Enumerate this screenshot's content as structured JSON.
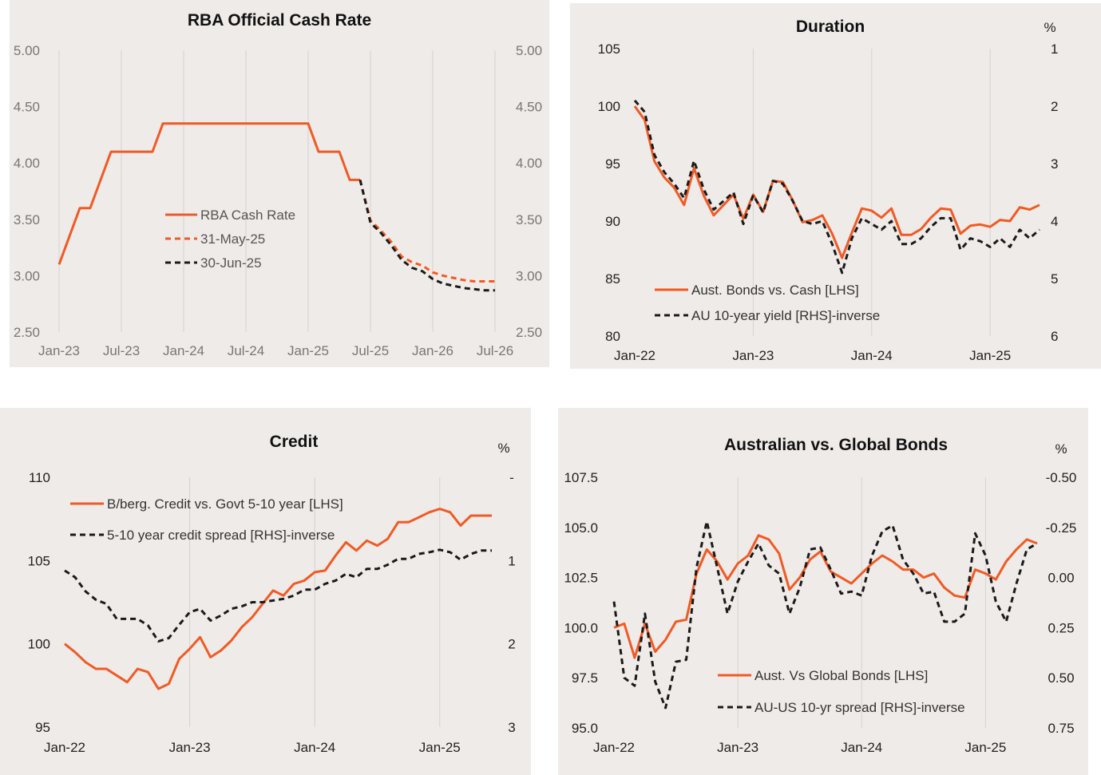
{
  "colors": {
    "orange": "#f15a24",
    "black": "#1a1a1a",
    "grid": "#d6d2ce",
    "panel_bg": "#efebe8"
  },
  "chart_data": [
    {
      "id": "cash",
      "type": "line",
      "title": "RBA Official Cash Rate",
      "y_unit": "",
      "x_domain": [
        "2023-01-01",
        "2026-07-01"
      ],
      "x_ticks": [
        "Jan-23",
        "Jul-23",
        "Jan-24",
        "Jul-24",
        "Jan-25",
        "Jul-25",
        "Jan-26",
        "Jul-26"
      ],
      "ylim": [
        2.5,
        5.0
      ],
      "y_ticks": [
        "5.00",
        "4.50",
        "4.00",
        "3.50",
        "3.00",
        "2.50"
      ],
      "y2_ticks": [
        "5.00",
        "4.50",
        "4.00",
        "3.50",
        "3.00",
        "2.50"
      ],
      "grid": "vertical",
      "legend_position": "center",
      "series": [
        {
          "name": "RBA Cash Rate",
          "color": "#f15a24",
          "dash": "solid",
          "axis": "left",
          "x": [
            "2023-01",
            "2023-03",
            "2023-04",
            "2023-06",
            "2023-07",
            "2023-08",
            "2023-09",
            "2023-10",
            "2023-11",
            "2023-12",
            "2024-01",
            "2024-06",
            "2024-12",
            "2025-01",
            "2025-02",
            "2025-03",
            "2025-04",
            "2025-05",
            "2025-06"
          ],
          "y": [
            3.1,
            3.6,
            3.6,
            4.1,
            4.1,
            4.1,
            4.1,
            4.1,
            4.35,
            4.35,
            4.35,
            4.35,
            4.35,
            4.35,
            4.1,
            4.1,
            4.1,
            3.85,
            3.85
          ]
        },
        {
          "name": "31-May-25",
          "color": "#f15a24",
          "dash": "dashed",
          "axis": "left",
          "x": [
            "2025-06",
            "2025-07",
            "2025-08",
            "2025-09",
            "2025-10",
            "2025-11",
            "2025-12",
            "2026-01",
            "2026-02",
            "2026-03",
            "2026-04",
            "2026-05",
            "2026-06",
            "2026-07"
          ],
          "y": [
            3.85,
            3.49,
            3.4,
            3.3,
            3.17,
            3.12,
            3.09,
            3.03,
            3.0,
            2.98,
            2.96,
            2.95,
            2.95,
            2.95
          ]
        },
        {
          "name": "30-Jun-25",
          "color": "#1a1a1a",
          "dash": "dashed",
          "axis": "left",
          "x": [
            "2025-06",
            "2025-07",
            "2025-08",
            "2025-09",
            "2025-10",
            "2025-11",
            "2025-12",
            "2026-01",
            "2026-02",
            "2026-03",
            "2026-04",
            "2026-05",
            "2026-06",
            "2026-07"
          ],
          "y": [
            3.85,
            3.47,
            3.38,
            3.27,
            3.14,
            3.07,
            3.04,
            2.97,
            2.93,
            2.91,
            2.89,
            2.88,
            2.87,
            2.87
          ]
        }
      ]
    },
    {
      "id": "duration",
      "type": "line",
      "title": "Duration",
      "y2_unit": "%",
      "x_domain": [
        "2022-01-01",
        "2025-06-01"
      ],
      "x_ticks": [
        "Jan-22",
        "Jan-23",
        "Jan-24",
        "Jan-25"
      ],
      "ylim": [
        80,
        105
      ],
      "y_ticks": [
        "105",
        "100",
        "95",
        "90",
        "85",
        "80"
      ],
      "y2lim": [
        1,
        6
      ],
      "y2_inverted": true,
      "y2_ticks": [
        "1",
        "2",
        "3",
        "4",
        "5",
        "6"
      ],
      "grid": "vertical",
      "legend_position": "bottom-left",
      "series": [
        {
          "name": "Aust. Bonds vs. Cash [LHS]",
          "color": "#f15a24",
          "dash": "solid",
          "axis": "left",
          "x": [
            "2022-01",
            "2022-02",
            "2022-03",
            "2022-04",
            "2022-05",
            "2022-06",
            "2022-07",
            "2022-08",
            "2022-09",
            "2022-10",
            "2022-11",
            "2022-12",
            "2023-01",
            "2023-02",
            "2023-03",
            "2023-04",
            "2023-05",
            "2023-06",
            "2023-07",
            "2023-08",
            "2023-09",
            "2023-10",
            "2023-11",
            "2023-12",
            "2024-01",
            "2024-02",
            "2024-03",
            "2024-04",
            "2024-05",
            "2024-06",
            "2024-07",
            "2024-08",
            "2024-09",
            "2024-10",
            "2024-11",
            "2024-12",
            "2025-01",
            "2025-02",
            "2025-03",
            "2025-04",
            "2025-05",
            "2025-06"
          ],
          "y": [
            100.0,
            98.8,
            95.2,
            93.8,
            92.9,
            91.4,
            94.6,
            92.2,
            90.5,
            91.4,
            92.3,
            90.2,
            92.3,
            90.8,
            93.5,
            93.4,
            91.8,
            89.9,
            90.1,
            90.5,
            88.9,
            86.8,
            89.0,
            91.1,
            90.9,
            90.3,
            91.1,
            88.8,
            88.8,
            89.3,
            90.3,
            91.1,
            91.0,
            88.9,
            89.6,
            89.7,
            89.5,
            90.1,
            90.0,
            91.2,
            91.0,
            91.4
          ]
        },
        {
          "name": "AU 10-year yield [RHS]-inverse",
          "color": "#1a1a1a",
          "dash": "dashed",
          "axis": "right",
          "x": [
            "2022-01",
            "2022-02",
            "2022-03",
            "2022-04",
            "2022-05",
            "2022-06",
            "2022-07",
            "2022-08",
            "2022-09",
            "2022-10",
            "2022-11",
            "2022-12",
            "2023-01",
            "2023-02",
            "2023-03",
            "2023-04",
            "2023-05",
            "2023-06",
            "2023-07",
            "2023-08",
            "2023-09",
            "2023-10",
            "2023-11",
            "2023-12",
            "2024-01",
            "2024-02",
            "2024-03",
            "2024-04",
            "2024-05",
            "2024-06",
            "2024-07",
            "2024-08",
            "2024-09",
            "2024-10",
            "2024-11",
            "2024-12",
            "2025-01",
            "2025-02",
            "2025-03",
            "2025-04",
            "2025-05",
            "2025-06"
          ],
          "y": [
            1.9,
            2.1,
            2.85,
            3.15,
            3.35,
            3.6,
            2.95,
            3.45,
            3.8,
            3.65,
            3.5,
            4.05,
            3.55,
            3.85,
            3.3,
            3.35,
            3.65,
            4.0,
            4.05,
            4.0,
            4.4,
            4.9,
            4.3,
            3.95,
            4.05,
            4.15,
            4.0,
            4.4,
            4.4,
            4.3,
            4.1,
            3.95,
            3.95,
            4.5,
            4.3,
            4.35,
            4.45,
            4.3,
            4.45,
            4.15,
            4.3,
            4.15
          ]
        }
      ]
    },
    {
      "id": "credit",
      "type": "line",
      "title": "Credit",
      "y2_unit": "%",
      "x_domain": [
        "2022-01-01",
        "2025-06-01"
      ],
      "x_ticks": [
        "Jan-22",
        "Jan-23",
        "Jan-24",
        "Jan-25"
      ],
      "ylim": [
        95,
        110
      ],
      "y_ticks": [
        "110",
        "105",
        "100",
        "95"
      ],
      "y2lim": [
        0,
        3
      ],
      "y2_inverted": true,
      "y2_ticks": [
        "-",
        "1",
        "2",
        "3"
      ],
      "grid": "vertical",
      "legend_position": "top-left",
      "series": [
        {
          "name": "B/berg. Credit vs. Govt 5-10 year [LHS]",
          "color": "#f15a24",
          "dash": "solid",
          "axis": "left",
          "x": [
            "2022-01",
            "2022-02",
            "2022-03",
            "2022-04",
            "2022-05",
            "2022-06",
            "2022-07",
            "2022-08",
            "2022-09",
            "2022-10",
            "2022-11",
            "2022-12",
            "2023-01",
            "2023-02",
            "2023-03",
            "2023-04",
            "2023-05",
            "2023-06",
            "2023-07",
            "2023-08",
            "2023-09",
            "2023-10",
            "2023-11",
            "2023-12",
            "2024-01",
            "2024-02",
            "2024-03",
            "2024-04",
            "2024-05",
            "2024-06",
            "2024-07",
            "2024-08",
            "2024-09",
            "2024-10",
            "2024-11",
            "2024-12",
            "2025-01",
            "2025-02",
            "2025-03",
            "2025-04",
            "2025-05",
            "2025-06"
          ],
          "y": [
            100.0,
            99.5,
            98.9,
            98.5,
            98.5,
            98.1,
            97.7,
            98.5,
            98.3,
            97.3,
            97.6,
            99.1,
            99.7,
            100.4,
            99.2,
            99.6,
            100.2,
            101.0,
            101.6,
            102.4,
            103.2,
            102.9,
            103.6,
            103.8,
            104.3,
            104.4,
            105.3,
            106.1,
            105.6,
            106.2,
            105.9,
            106.3,
            107.3,
            107.3,
            107.6,
            107.9,
            108.1,
            107.9,
            107.1,
            107.7,
            107.7,
            107.7
          ]
        },
        {
          "name": "5-10 year credit spread [RHS]-inverse",
          "color": "#1a1a1a",
          "dash": "dashed",
          "axis": "right",
          "x": [
            "2022-01",
            "2022-02",
            "2022-03",
            "2022-04",
            "2022-05",
            "2022-06",
            "2022-07",
            "2022-08",
            "2022-09",
            "2022-10",
            "2022-11",
            "2022-12",
            "2023-01",
            "2023-02",
            "2023-03",
            "2023-04",
            "2023-05",
            "2023-06",
            "2023-07",
            "2023-08",
            "2023-09",
            "2023-10",
            "2023-11",
            "2023-12",
            "2024-01",
            "2024-02",
            "2024-03",
            "2024-04",
            "2024-05",
            "2024-06",
            "2024-07",
            "2024-08",
            "2024-09",
            "2024-10",
            "2024-11",
            "2024-12",
            "2025-01",
            "2025-02",
            "2025-03",
            "2025-04",
            "2025-05",
            "2025-06"
          ],
          "y": [
            1.12,
            1.2,
            1.37,
            1.47,
            1.52,
            1.7,
            1.7,
            1.7,
            1.78,
            1.97,
            1.93,
            1.77,
            1.62,
            1.58,
            1.72,
            1.66,
            1.58,
            1.55,
            1.5,
            1.5,
            1.48,
            1.46,
            1.42,
            1.35,
            1.35,
            1.28,
            1.24,
            1.16,
            1.2,
            1.1,
            1.1,
            1.05,
            0.98,
            0.98,
            0.92,
            0.9,
            0.87,
            0.9,
            0.99,
            0.92,
            0.88,
            0.88
          ]
        }
      ]
    },
    {
      "id": "global",
      "type": "line",
      "title": "Australian vs. Global Bonds",
      "y2_unit": "%",
      "x_domain": [
        "2022-01-01",
        "2025-06-01"
      ],
      "x_ticks": [
        "Jan-22",
        "Jan-23",
        "Jan-24",
        "Jan-25"
      ],
      "ylim": [
        95,
        107.5
      ],
      "y_ticks": [
        "107.5",
        "105.0",
        "102.5",
        "100.0",
        "97.5",
        "95.0"
      ],
      "y2lim": [
        -0.5,
        0.75
      ],
      "y2_inverted": true,
      "y2_ticks": [
        "-0.50",
        "-0.25",
        "0.00",
        "0.25",
        "0.50",
        "0.75"
      ],
      "grid": "vertical",
      "legend_position": "bottom-left",
      "series": [
        {
          "name": "Aust. Vs Global Bonds [LHS]",
          "color": "#f15a24",
          "dash": "solid",
          "axis": "left",
          "x": [
            "2022-01",
            "2022-02",
            "2022-03",
            "2022-04",
            "2022-05",
            "2022-06",
            "2022-07",
            "2022-08",
            "2022-09",
            "2022-10",
            "2022-11",
            "2022-12",
            "2023-01",
            "2023-02",
            "2023-03",
            "2023-04",
            "2023-05",
            "2023-06",
            "2023-07",
            "2023-08",
            "2023-09",
            "2023-10",
            "2023-11",
            "2023-12",
            "2024-01",
            "2024-02",
            "2024-03",
            "2024-04",
            "2024-05",
            "2024-06",
            "2024-07",
            "2024-08",
            "2024-09",
            "2024-10",
            "2024-11",
            "2024-12",
            "2025-01",
            "2025-02",
            "2025-03",
            "2025-04",
            "2025-05",
            "2025-06"
          ],
          "y": [
            100.0,
            100.2,
            98.5,
            100.2,
            98.8,
            99.4,
            100.3,
            100.4,
            102.7,
            103.9,
            103.3,
            102.4,
            103.2,
            103.6,
            104.6,
            104.4,
            103.7,
            101.9,
            102.5,
            103.4,
            103.8,
            102.8,
            102.5,
            102.2,
            102.7,
            103.2,
            103.6,
            103.3,
            102.9,
            102.9,
            102.5,
            102.7,
            102.0,
            101.6,
            101.5,
            102.9,
            102.7,
            102.4,
            103.3,
            103.9,
            104.4,
            104.2
          ]
        },
        {
          "name": "AU-US 10-yr spread [RHS]-inverse",
          "color": "#1a1a1a",
          "dash": "dashed",
          "axis": "right",
          "x": [
            "2022-01",
            "2022-02",
            "2022-03",
            "2022-04",
            "2022-05",
            "2022-06",
            "2022-07",
            "2022-08",
            "2022-09",
            "2022-10",
            "2022-11",
            "2022-12",
            "2023-01",
            "2023-02",
            "2023-03",
            "2023-04",
            "2023-05",
            "2023-06",
            "2023-07",
            "2023-08",
            "2023-09",
            "2023-10",
            "2023-11",
            "2023-12",
            "2024-01",
            "2024-02",
            "2024-03",
            "2024-04",
            "2024-05",
            "2024-06",
            "2024-07",
            "2024-08",
            "2024-09",
            "2024-10",
            "2024-11",
            "2024-12",
            "2025-01",
            "2025-02",
            "2025-03",
            "2025-04",
            "2025-05",
            "2025-06"
          ],
          "y": [
            0.12,
            0.5,
            0.54,
            0.18,
            0.52,
            0.65,
            0.42,
            0.41,
            -0.05,
            -0.28,
            -0.05,
            0.18,
            0.02,
            -0.08,
            -0.17,
            -0.06,
            -0.02,
            0.18,
            0.05,
            -0.14,
            -0.15,
            -0.04,
            0.08,
            0.07,
            0.09,
            -0.11,
            -0.23,
            -0.26,
            -0.09,
            -0.02,
            0.08,
            0.07,
            0.22,
            0.22,
            0.18,
            -0.22,
            -0.11,
            0.12,
            0.22,
            0.03,
            -0.14,
            -0.17
          ]
        }
      ]
    }
  ]
}
